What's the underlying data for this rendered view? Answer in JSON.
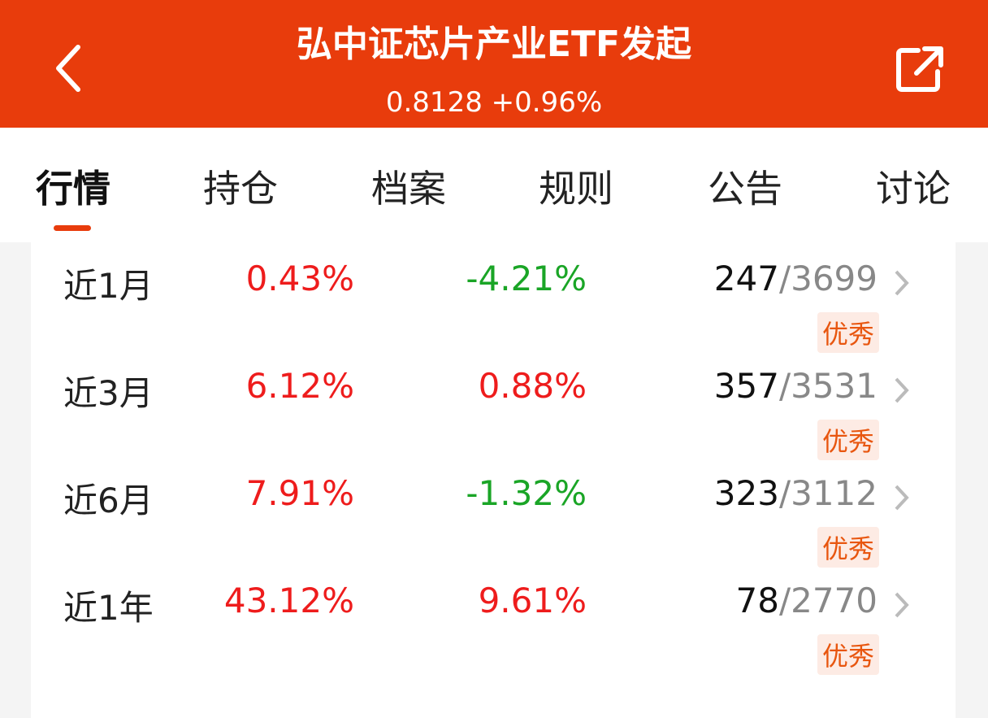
{
  "header": {
    "title": "弘中证芯片产业ETF发起",
    "subtitle": "0.8128 +0.96%"
  },
  "tabs": [
    "行情",
    "持仓",
    "档案",
    "规则",
    "公告",
    "讨论"
  ],
  "active_tab": 0,
  "rows": [
    {
      "period": "近1月",
      "return": "0.43%",
      "benchmark": "-4.21%",
      "rank": "247",
      "rank_total": "/3699",
      "badge": "优秀"
    },
    {
      "period": "近3月",
      "return": "6.12%",
      "benchmark": "0.88%",
      "rank": "357",
      "rank_total": "/3531",
      "badge": "优秀"
    },
    {
      "period": "近6月",
      "return": "7.91%",
      "benchmark": "-1.32%",
      "rank": "323",
      "rank_total": "/3112",
      "badge": "优秀"
    },
    {
      "period": "近1年",
      "return": "43.12%",
      "benchmark": "9.61%",
      "rank": "78",
      "rank_total": "/2770",
      "badge": "优秀"
    }
  ]
}
